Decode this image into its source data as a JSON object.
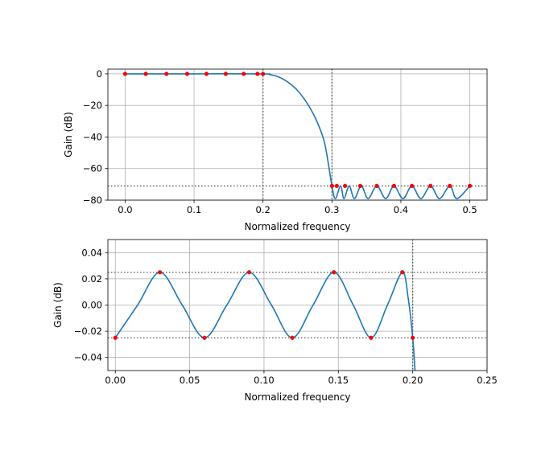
{
  "chart_data": [
    {
      "type": "line",
      "xlabel": "Normalized frequency",
      "ylabel": "Gain (dB)",
      "xlim": [
        -0.025,
        0.525
      ],
      "ylim": [
        -80,
        3
      ],
      "xticks": [
        0.0,
        0.1,
        0.2,
        0.3,
        0.4,
        0.5
      ],
      "xtick_labels": [
        "0.0",
        "0.1",
        "0.2",
        "0.3",
        "0.4",
        "0.5"
      ],
      "yticks": [
        0,
        -20,
        -40,
        -60,
        -80
      ],
      "ytick_labels": [
        "0",
        "−20",
        "−40",
        "−60",
        "−80"
      ],
      "grid": true,
      "vlines": [
        0.2,
        0.3
      ],
      "hlines": [
        -71
      ],
      "series": [
        {
          "kind": "line",
          "color": "#1f77b4",
          "points": [
            [
              0.0,
              0
            ],
            [
              0.1,
              0
            ],
            [
              0.2,
              0
            ],
            [
              0.21,
              -0.5
            ],
            [
              0.22,
              -1.5
            ],
            [
              0.23,
              -3.5
            ],
            [
              0.24,
              -6.5
            ],
            [
              0.25,
              -10.5
            ],
            [
              0.26,
              -16
            ],
            [
              0.27,
              -23
            ],
            [
              0.28,
              -32
            ],
            [
              0.29,
              -45
            ],
            [
              0.3,
              -71
            ],
            [
              0.305,
              -79
            ],
            [
              0.3125,
              -71
            ],
            [
              0.3175,
              -79
            ],
            [
              0.325,
              -71
            ],
            [
              0.3325,
              -79
            ],
            [
              0.3425,
              -71
            ],
            [
              0.3525,
              -79
            ],
            [
              0.365,
              -71
            ],
            [
              0.378,
              -79
            ],
            [
              0.39,
              -71
            ],
            [
              0.403,
              -79
            ],
            [
              0.416,
              -71
            ],
            [
              0.429,
              -79
            ],
            [
              0.443,
              -71
            ],
            [
              0.456,
              -79
            ],
            [
              0.471,
              -71
            ],
            [
              0.481,
              -79
            ],
            [
              0.5,
              -71
            ]
          ]
        },
        {
          "kind": "markers",
          "color": "#ff0000",
          "points": [
            [
              0.0,
              0
            ],
            [
              0.03,
              0
            ],
            [
              0.06,
              0
            ],
            [
              0.09,
              0
            ],
            [
              0.118,
              0
            ],
            [
              0.146,
              0
            ],
            [
              0.172,
              0
            ],
            [
              0.192,
              0
            ],
            [
              0.2,
              0
            ],
            [
              0.3,
              -71
            ],
            [
              0.307,
              -71
            ],
            [
              0.319,
              -71
            ],
            [
              0.341,
              -71
            ],
            [
              0.365,
              -71
            ],
            [
              0.39,
              -71
            ],
            [
              0.416,
              -71
            ],
            [
              0.443,
              -71
            ],
            [
              0.471,
              -71
            ],
            [
              0.5,
              -71
            ]
          ]
        }
      ]
    },
    {
      "type": "line",
      "xlabel": "Normalized frequency",
      "ylabel": "Gain (dB)",
      "xlim": [
        -0.005,
        0.25
      ],
      "ylim": [
        -0.05,
        0.05
      ],
      "xticks": [
        0.0,
        0.05,
        0.1,
        0.15,
        0.2,
        0.25
      ],
      "xtick_labels": [
        "0.00",
        "0.05",
        "0.10",
        "0.15",
        "0.20",
        "0.25"
      ],
      "yticks": [
        0.04,
        0.02,
        0.0,
        -0.02,
        -0.04
      ],
      "ytick_labels": [
        "0.04",
        "0.02",
        "0.00",
        "−0.02",
        "−0.04"
      ],
      "grid": true,
      "vlines": [
        0.2
      ],
      "hlines": [
        0.025,
        -0.025
      ],
      "series": [
        {
          "kind": "line",
          "color": "#1f77b4",
          "points": [
            [
              0.0,
              -0.025
            ],
            [
              0.015,
              0.0
            ],
            [
              0.03,
              0.025
            ],
            [
              0.045,
              0.0
            ],
            [
              0.06,
              -0.025
            ],
            [
              0.075,
              0.0
            ],
            [
              0.09,
              0.025
            ],
            [
              0.105,
              0.0
            ],
            [
              0.119,
              -0.025
            ],
            [
              0.133,
              0.0
            ],
            [
              0.147,
              0.025
            ],
            [
              0.16,
              0.0
            ],
            [
              0.172,
              -0.025
            ],
            [
              0.183,
              0.0
            ],
            [
              0.193,
              0.025
            ],
            [
              0.197,
              0.005
            ],
            [
              0.2,
              -0.025
            ],
            [
              0.2015,
              -0.05
            ]
          ]
        },
        {
          "kind": "markers",
          "color": "#ff0000",
          "points": [
            [
              0.0,
              -0.025
            ],
            [
              0.03,
              0.025
            ],
            [
              0.06,
              -0.025
            ],
            [
              0.09,
              0.025
            ],
            [
              0.119,
              -0.025
            ],
            [
              0.147,
              0.025
            ],
            [
              0.172,
              -0.025
            ],
            [
              0.193,
              0.025
            ],
            [
              0.2,
              -0.025
            ]
          ]
        }
      ]
    }
  ]
}
